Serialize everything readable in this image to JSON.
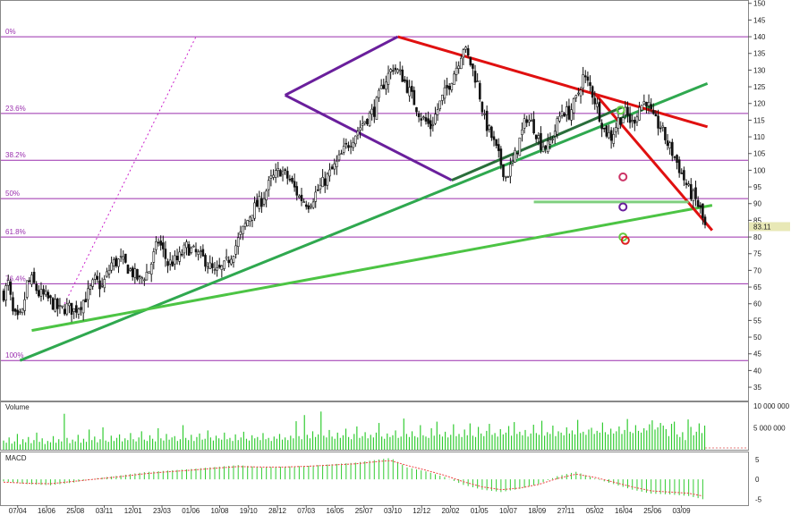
{
  "chart_data": [
    {
      "type": "line",
      "panel": "price",
      "x_labels": [
        "07/04",
        "16/06",
        "25/08",
        "03/11",
        "12/01",
        "23/03",
        "01/06",
        "10/08",
        "19/10",
        "28/12",
        "07/03",
        "16/05",
        "25/07",
        "03/10",
        "12/12",
        "20/02",
        "01/05",
        "10/07",
        "18/09",
        "27/11",
        "05/02",
        "16/04",
        "25/06",
        "03/09"
      ],
      "y_ticks": [
        35,
        40,
        45,
        50,
        55,
        60,
        65,
        70,
        75,
        80,
        85,
        90,
        95,
        100,
        105,
        110,
        115,
        120,
        125,
        130,
        135,
        140,
        145,
        150
      ],
      "ylim": [
        31,
        151
      ],
      "last_price": "83.11",
      "price_path": [
        [
          0,
          63
        ],
        [
          2,
          66
        ],
        [
          4,
          57
        ],
        [
          6,
          55
        ],
        [
          8,
          57
        ],
        [
          10,
          66
        ],
        [
          12,
          67
        ],
        [
          15,
          63
        ],
        [
          18,
          62
        ],
        [
          21,
          60
        ],
        [
          24,
          58
        ],
        [
          27,
          59
        ],
        [
          30,
          58
        ],
        [
          33,
          60
        ],
        [
          36,
          63
        ],
        [
          39,
          67
        ],
        [
          42,
          65
        ],
        [
          46,
          72
        ],
        [
          50,
          73
        ],
        [
          54,
          70
        ],
        [
          58,
          67
        ],
        [
          62,
          70
        ],
        [
          66,
          79
        ],
        [
          70,
          72
        ],
        [
          74,
          73
        ],
        [
          78,
          77
        ],
        [
          82,
          75
        ],
        [
          86,
          73
        ],
        [
          90,
          69
        ],
        [
          94,
          71
        ],
        [
          98,
          76
        ],
        [
          102,
          82
        ],
        [
          106,
          88
        ],
        [
          110,
          91
        ],
        [
          114,
          97
        ],
        [
          118,
          100
        ],
        [
          122,
          97
        ],
        [
          126,
          92
        ],
        [
          130,
          90
        ],
        [
          134,
          94
        ],
        [
          138,
          98
        ],
        [
          142,
          102
        ],
        [
          146,
          107
        ],
        [
          150,
          111
        ],
        [
          154,
          115
        ],
        [
          158,
          118
        ],
        [
          162,
          126
        ],
        [
          166,
          131
        ],
        [
          170,
          128
        ],
        [
          174,
          122
        ],
        [
          178,
          116
        ],
        [
          182,
          113
        ],
        [
          186,
          120
        ],
        [
          190,
          126
        ],
        [
          193,
          131
        ],
        [
          196,
          137
        ],
        [
          199,
          132
        ],
        [
          202,
          126
        ],
        [
          205,
          115
        ],
        [
          208,
          110
        ],
        [
          211,
          104
        ],
        [
          214,
          98
        ],
        [
          217,
          102
        ],
        [
          220,
          109
        ],
        [
          223,
          116
        ],
        [
          226,
          113
        ],
        [
          229,
          108
        ],
        [
          232,
          107
        ],
        [
          235,
          112
        ],
        [
          238,
          118
        ],
        [
          241,
          117
        ],
        [
          244,
          121
        ],
        [
          247,
          128
        ],
        [
          250,
          125
        ],
        [
          253,
          119
        ],
        [
          256,
          112
        ],
        [
          259,
          110
        ],
        [
          262,
          115
        ],
        [
          265,
          117
        ],
        [
          268,
          114
        ],
        [
          271,
          119
        ],
        [
          274,
          121
        ],
        [
          277,
          115
        ],
        [
          280,
          113
        ],
        [
          283,
          108
        ],
        [
          286,
          104
        ],
        [
          289,
          99
        ],
        [
          292,
          94
        ],
        [
          295,
          91
        ],
        [
          297,
          88
        ],
        [
          299,
          83
        ]
      ],
      "percent_levels": [
        {
          "label": "0%",
          "value": 140
        },
        {
          "label": "23.6%",
          "value": 117
        },
        {
          "label": "38.2%",
          "value": 103
        },
        {
          "label": "50%",
          "value": 91.5
        },
        {
          "label": "61.8%",
          "value": 80
        },
        {
          "label": "76.4%",
          "value": 66
        },
        {
          "label": "100%",
          "value": 43
        }
      ],
      "trendlines": [
        {
          "color": "#2fa84f",
          "from": [
            7,
            43
          ],
          "to": [
            300,
            126
          ]
        },
        {
          "color": "#4cc444",
          "from": [
            12,
            52
          ],
          "to": [
            302,
            89.5
          ]
        },
        {
          "color": "#e01010",
          "from": [
            168,
            140
          ],
          "to": [
            300,
            113
          ]
        },
        {
          "color": "#e01010",
          "from": [
            252,
            123
          ],
          "to": [
            302,
            82
          ]
        },
        {
          "color": "#6a1f9c",
          "from": [
            120,
            122.5
          ],
          "to": [
            168,
            140
          ]
        },
        {
          "color": "#6a1f9c",
          "from": [
            120,
            122.5
          ],
          "to": [
            191,
            97
          ]
        },
        {
          "color": "#cc22cc",
          "dashed": true,
          "from": [
            26,
            60
          ],
          "to": [
            82,
            140
          ]
        },
        {
          "color": "#2a6e3b",
          "from": [
            191,
            97
          ],
          "to": [
            264,
            119
          ]
        },
        {
          "color": "#7fcf7f",
          "from": [
            226,
            90.5
          ],
          "to": [
            292,
            90.5
          ]
        }
      ],
      "markers": [
        {
          "x": 263,
          "y": 118,
          "color": "#66cc44"
        },
        {
          "x": 264,
          "y": 98,
          "color": "#cc3366"
        },
        {
          "x": 264,
          "y": 89,
          "color": "#6a1f9c"
        },
        {
          "x": 264,
          "y": 80,
          "color": "#66cc44"
        },
        {
          "x": 265,
          "y": 79,
          "color": "#dd2222"
        }
      ]
    },
    {
      "type": "bar",
      "panel": "volume",
      "title": "Volume",
      "y_ticks": [
        "10 000 000",
        "5 000 000"
      ],
      "ylim": [
        0,
        11000000
      ],
      "values": [
        2.1,
        1.6,
        2.8,
        1.4,
        1.9,
        3.6,
        1.2,
        2.4,
        1.7,
        2.9,
        1.5,
        2.2,
        3.9,
        1.8,
        2.6,
        1.3,
        2.0,
        1.7,
        3.1,
        1.6,
        2.4,
        1.9,
        8.2,
        2.7,
        1.5,
        2.3,
        1.9,
        3.4,
        1.6,
        2.5,
        1.8,
        4.6,
        2.2,
        3.0,
        1.7,
        2.4,
        5.1,
        2.1,
        1.8,
        3.2,
        2.0,
        2.7,
        3.5,
        1.9,
        2.6,
        2.2,
        3.8,
        2.4,
        1.9,
        2.8,
        4.2,
        2.3,
        2.0,
        3.3,
        2.5,
        1.9,
        4.9,
        2.6,
        2.1,
        3.6,
        2.3,
        2.8,
        3.1,
        2.0,
        2.4,
        5.6,
        2.7,
        2.2,
        3.4,
        2.0,
        2.9,
        3.7,
        2.3,
        2.5,
        4.4,
        2.8,
        2.1,
        3.2,
        2.6,
        2.3,
        3.9,
        2.4,
        2.7,
        2.0,
        3.5,
        2.2,
        2.8,
        4.1,
        2.5,
        2.1,
        3.3,
        2.6,
        2.9,
        2.2,
        3.8,
        2.4,
        2.7,
        2.0,
        3.0,
        2.5,
        3.6,
        2.3,
        2.8,
        2.2,
        3.2,
        2.6,
        6.5,
        3.1,
        2.4,
        7.9,
        3.4,
        2.6,
        4.2,
        2.9,
        3.5,
        8.7,
        3.2,
        2.8,
        4.5,
        3.0,
        2.5,
        3.9,
        2.7,
        3.3,
        4.8,
        2.9,
        2.4,
        3.6,
        5.3,
        2.7,
        3.1,
        4.0,
        2.6,
        3.4,
        2.8,
        3.9,
        6.1,
        3.0,
        2.5,
        3.7,
        2.9,
        3.3,
        4.4,
        2.7,
        3.0,
        7.1,
        3.6,
        2.9,
        4.2,
        3.1,
        2.8,
        5.6,
        3.3,
        3.0,
        2.7,
        4.9,
        3.2,
        6.4,
        3.5,
        3.0,
        4.1,
        2.8,
        3.4,
        5.8,
        3.1,
        3.6,
        2.9,
        4.6,
        3.3,
        6.0,
        3.2,
        2.9,
        5.2,
        3.7,
        3.1,
        4.3,
        5.9,
        3.4,
        3.8,
        3.0,
        4.7,
        3.5,
        3.9,
        5.4,
        3.2,
        6.3,
        3.6,
        4.1,
        3.3,
        4.5,
        3.0,
        3.7,
        5.7,
        3.8,
        3.4,
        6.6,
        3.2,
        4.0,
        3.6,
        5.5,
        3.1,
        4.2,
        3.9,
        3.3,
        5.1,
        3.7,
        4.4,
        3.5,
        6.8,
        3.8,
        4.1,
        3.4,
        4.6,
        5.0,
        3.6,
        4.3,
        3.9,
        6.2,
        4.0,
        3.5,
        4.8,
        3.7,
        4.2,
        5.3,
        3.6,
        4.5,
        7.0,
        4.1,
        3.8,
        5.6,
        4.3,
        3.9,
        4.9,
        4.4,
        5.8,
        6.7,
        4.6,
        5.1,
        6.1,
        5.5,
        4.7,
        3.1,
        5.9,
        6.4,
        3.5,
        2.9,
        4.0,
        2.2,
        6.9,
        5.2,
        3.3,
        4.1,
        6.0,
        3.8,
        5.5
      ],
      "unit_values": "millions"
    },
    {
      "type": "bar",
      "panel": "macd",
      "title": "MACD",
      "y_ticks": [
        5,
        0,
        -5
      ],
      "ylim": [
        -6.5,
        7
      ],
      "macd_histogram_path": [
        [
          0,
          -0.5
        ],
        [
          10,
          -1.2
        ],
        [
          20,
          -1.5
        ],
        [
          30,
          -0.8
        ],
        [
          40,
          0.3
        ],
        [
          50,
          1.0
        ],
        [
          60,
          1.8
        ],
        [
          70,
          2.2
        ],
        [
          80,
          2.6
        ],
        [
          90,
          3.1
        ],
        [
          100,
          3.6
        ],
        [
          110,
          3.0
        ],
        [
          120,
          3.2
        ],
        [
          130,
          3.4
        ],
        [
          140,
          3.8
        ],
        [
          150,
          4.2
        ],
        [
          160,
          5.0
        ],
        [
          165,
          5.4
        ],
        [
          172,
          3.0
        ],
        [
          180,
          2.0
        ],
        [
          188,
          0.6
        ],
        [
          196,
          -1.4
        ],
        [
          204,
          -2.6
        ],
        [
          212,
          -3.2
        ],
        [
          220,
          -2.4
        ],
        [
          228,
          -1.2
        ],
        [
          236,
          0.8
        ],
        [
          244,
          1.9
        ],
        [
          252,
          0.2
        ],
        [
          260,
          -1.2
        ],
        [
          268,
          -2.6
        ],
        [
          276,
          -3.6
        ],
        [
          284,
          -3.8
        ],
        [
          292,
          -4.2
        ],
        [
          298,
          -5.0
        ]
      ],
      "signal_path": [
        [
          0,
          -0.7
        ],
        [
          10,
          -1.0
        ],
        [
          20,
          -1.1
        ],
        [
          30,
          -0.5
        ],
        [
          40,
          0.1
        ],
        [
          50,
          0.7
        ],
        [
          60,
          1.4
        ],
        [
          70,
          1.9
        ],
        [
          80,
          2.3
        ],
        [
          90,
          2.8
        ],
        [
          100,
          3.2
        ],
        [
          110,
          3.1
        ],
        [
          120,
          3.1
        ],
        [
          130,
          3.3
        ],
        [
          140,
          3.6
        ],
        [
          150,
          3.9
        ],
        [
          160,
          4.5
        ],
        [
          165,
          4.7
        ],
        [
          172,
          3.5
        ],
        [
          180,
          2.3
        ],
        [
          188,
          1.0
        ],
        [
          196,
          -0.6
        ],
        [
          204,
          -1.9
        ],
        [
          212,
          -2.6
        ],
        [
          220,
          -2.2
        ],
        [
          228,
          -1.3
        ],
        [
          236,
          0.2
        ],
        [
          244,
          1.3
        ],
        [
          252,
          0.5
        ],
        [
          260,
          -0.7
        ],
        [
          268,
          -1.9
        ],
        [
          276,
          -2.9
        ],
        [
          284,
          -3.2
        ],
        [
          292,
          -3.5
        ],
        [
          298,
          -4.2
        ]
      ]
    }
  ],
  "legend_colors": {
    "grid": "#9a2fae",
    "candle": "#111111",
    "volume": "#33cc33",
    "macd": "#33cc33",
    "signal": "#ee4444",
    "axis_text": "#222222",
    "price_tag": "#e8e8b6"
  }
}
